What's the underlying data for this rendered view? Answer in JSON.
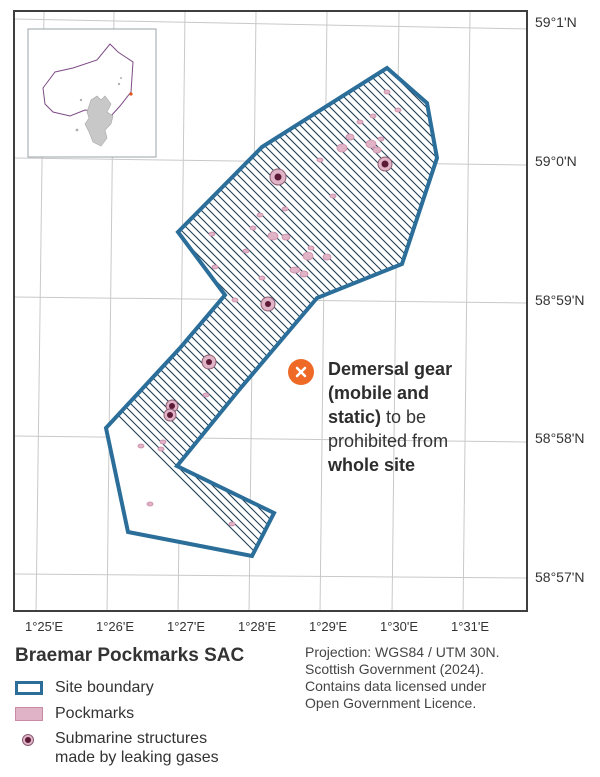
{
  "map": {
    "title": "Braemar Pockmarks SAC",
    "lat_labels": [
      "59°1'N",
      "59°0'N",
      "58°59'N",
      "58°58'N",
      "58°57'N"
    ],
    "lon_labels": [
      "1°25'E",
      "1°26'E",
      "1°27'E",
      "1°28'E",
      "1°29'E",
      "1°30'E",
      "1°31'E"
    ],
    "colors": {
      "boundary": "#2b6e9a",
      "hatch": "#1f3f55",
      "pockmark_fill": "#e0b4c6",
      "pockmark_stroke": "#c98aa6",
      "structure_dot": "#5c1a36",
      "annotation_marker": "#ee6a26",
      "graticule": "#c9c9c9"
    }
  },
  "annotation": {
    "icon": "close-icon",
    "line1": "Demersal gear",
    "line2": "(mobile and",
    "line3_bold": "static)",
    "line3_rest": " to be",
    "line4": "prohibited from",
    "line5": "whole site"
  },
  "legend": {
    "title": "Braemar Pockmarks SAC",
    "items": [
      {
        "label": "Site boundary",
        "icon": "site-boundary-swatch"
      },
      {
        "label": "Pockmarks",
        "icon": "pockmark-swatch"
      },
      {
        "label": "Submarine structures",
        "label2": "made by leaking gases",
        "icon": "structure-marker-icon"
      }
    ]
  },
  "credits": {
    "lines": [
      "Projection: WGS84 / UTM 30N.",
      "Scottish Government (2024).",
      "Contains data licensed under",
      "Open Government Licence."
    ]
  }
}
